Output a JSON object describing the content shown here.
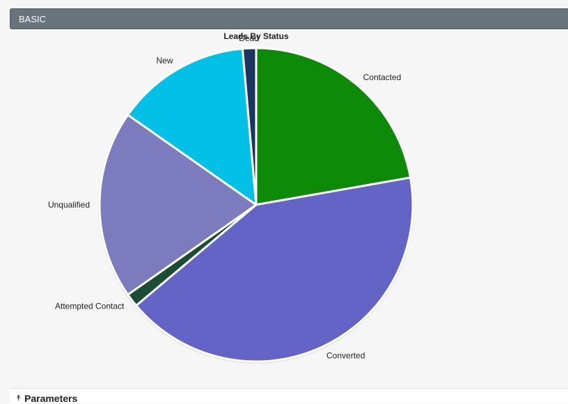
{
  "panel": {
    "title": "BASIC"
  },
  "parameters": {
    "label": "Parameters",
    "icon": "double-chevron-up-icon"
  },
  "chart_data": {
    "type": "pie",
    "title": "Leads By Status",
    "slices": [
      {
        "label": "Contacted",
        "value": 16,
        "color": "#0d8a07"
      },
      {
        "label": "Converted",
        "value": 30,
        "color": "#6464c6"
      },
      {
        "label": "Attempted Contact",
        "value": 1,
        "color": "#1b4d34"
      },
      {
        "label": "Unqualified",
        "value": 14,
        "color": "#7b7bbd"
      },
      {
        "label": "New",
        "value": 10,
        "color": "#03c1e6"
      },
      {
        "label": "Dead",
        "value": 1,
        "color": "#1a3660"
      }
    ],
    "start_angle_deg": 0,
    "direction": "clockwise"
  }
}
